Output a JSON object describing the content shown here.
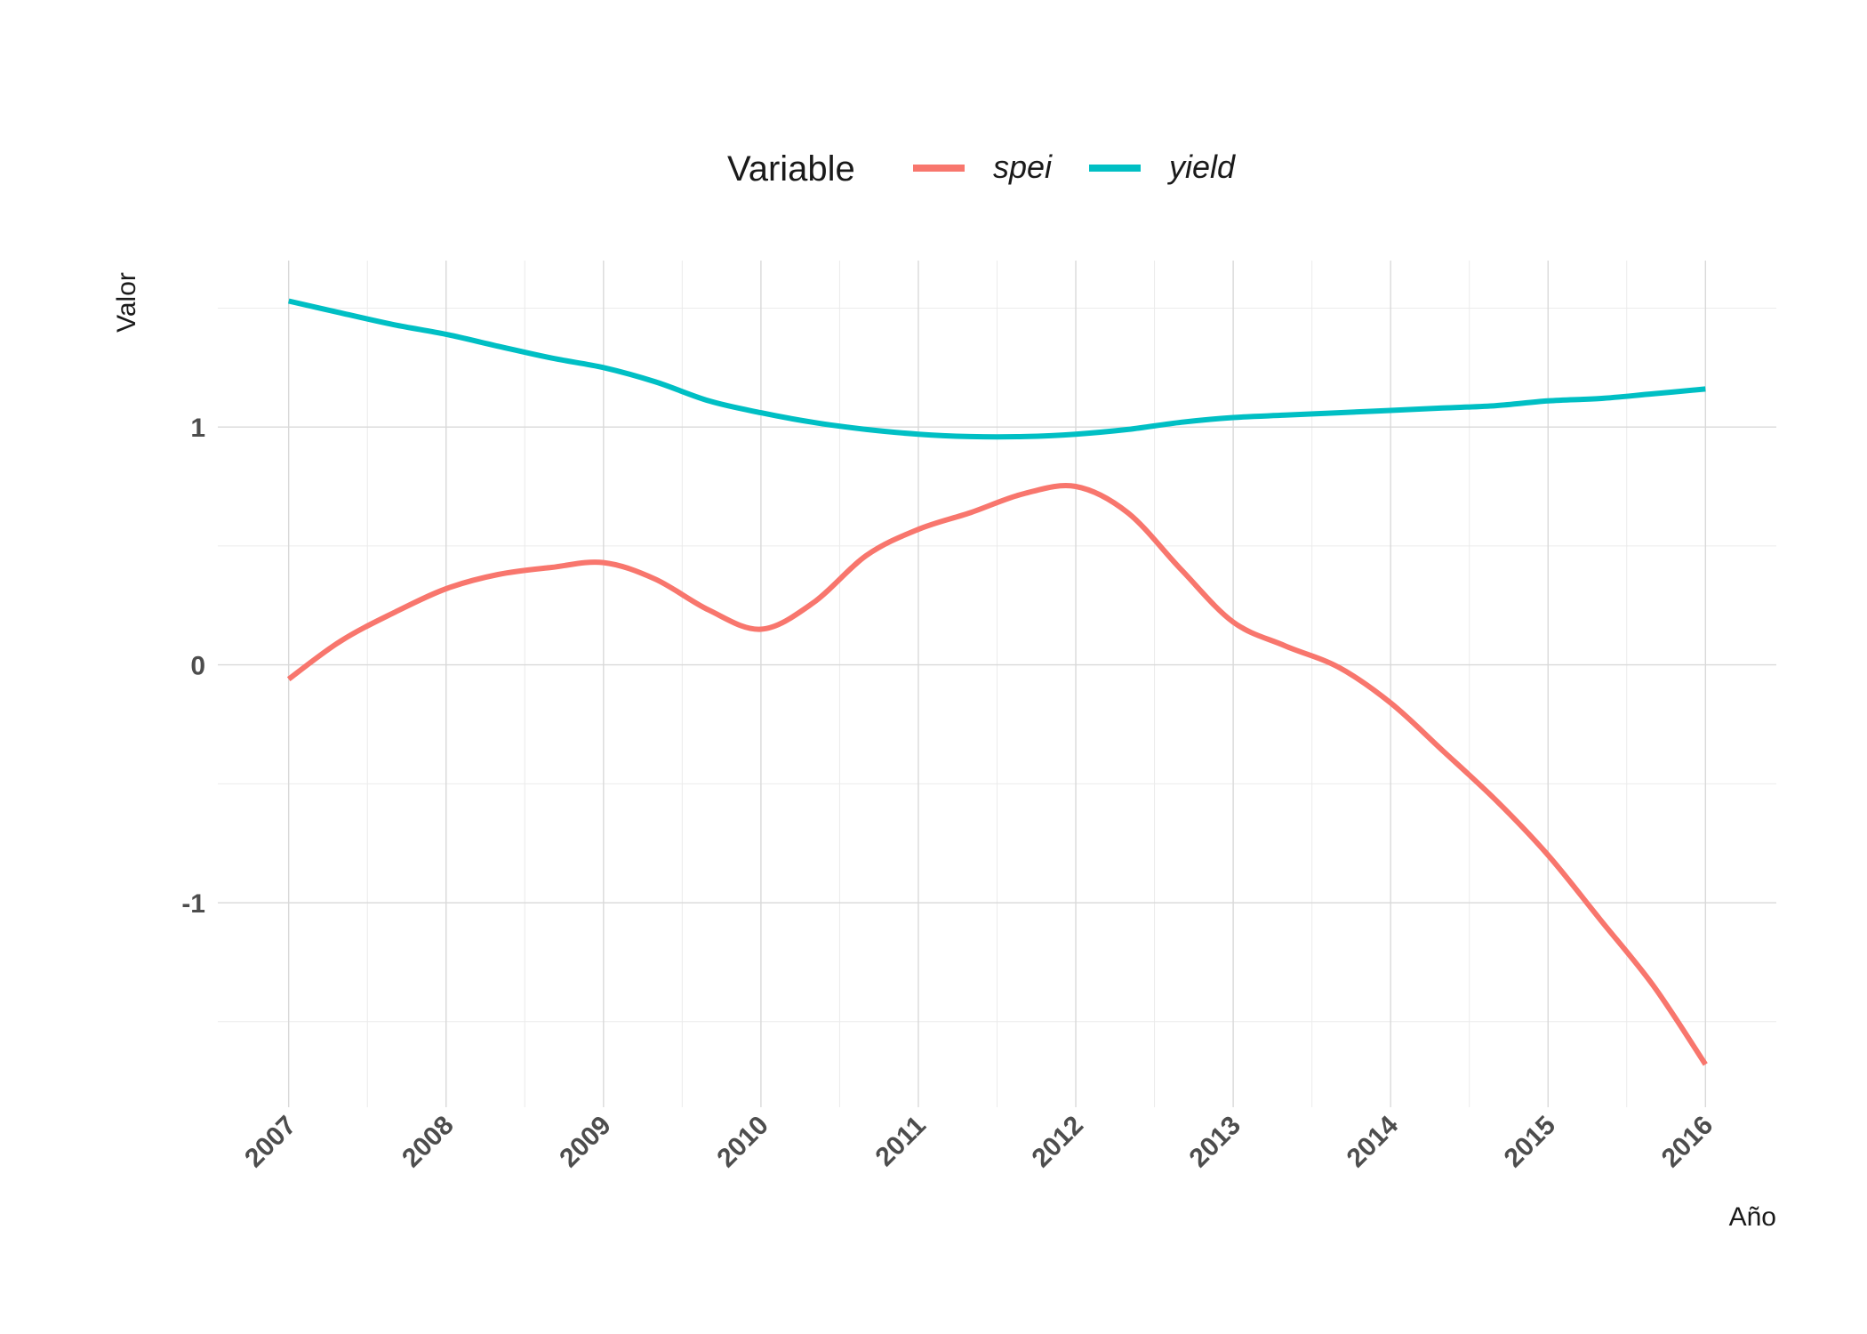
{
  "chart_data": {
    "type": "line",
    "xlabel": "Año",
    "ylabel": "Valor",
    "x_ticks": [
      "2007",
      "2008",
      "2009",
      "2010",
      "2011",
      "2012",
      "2013",
      "2014",
      "2015",
      "2016"
    ],
    "y_ticks": [
      "-1",
      "0",
      "1"
    ],
    "xlim": [
      2006.55,
      2016.45
    ],
    "ylim": [
      -1.86,
      1.7
    ],
    "grid": true,
    "legend": {
      "title": "Variable",
      "position": "top"
    },
    "series": [
      {
        "name": "spei",
        "color": "#F8766D",
        "x": [
          2007,
          2007.33,
          2007.67,
          2008,
          2008.33,
          2008.67,
          2009,
          2009.33,
          2009.67,
          2010,
          2010.33,
          2010.67,
          2011,
          2011.33,
          2011.67,
          2012,
          2012.33,
          2012.67,
          2013,
          2013.33,
          2013.67,
          2014,
          2014.33,
          2014.67,
          2015,
          2015.33,
          2015.67,
          2016
        ],
        "y": [
          -0.06,
          0.1,
          0.22,
          0.32,
          0.38,
          0.41,
          0.43,
          0.36,
          0.23,
          0.15,
          0.26,
          0.46,
          0.57,
          0.64,
          0.72,
          0.75,
          0.64,
          0.4,
          0.18,
          0.08,
          -0.01,
          -0.16,
          -0.36,
          -0.57,
          -0.8,
          -1.07,
          -1.35,
          -1.68
        ]
      },
      {
        "name": "yield",
        "color": "#00BFC4",
        "x": [
          2007,
          2007.33,
          2007.67,
          2008,
          2008.33,
          2008.67,
          2009,
          2009.33,
          2009.67,
          2010,
          2010.33,
          2010.67,
          2011,
          2011.33,
          2011.67,
          2012,
          2012.33,
          2012.67,
          2013,
          2013.33,
          2013.67,
          2014,
          2014.33,
          2014.67,
          2015,
          2015.33,
          2015.67,
          2016
        ],
        "y": [
          1.53,
          1.48,
          1.43,
          1.39,
          1.34,
          1.29,
          1.25,
          1.19,
          1.11,
          1.06,
          1.02,
          0.99,
          0.97,
          0.96,
          0.96,
          0.97,
          0.99,
          1.02,
          1.04,
          1.05,
          1.06,
          1.07,
          1.08,
          1.09,
          1.11,
          1.12,
          1.14,
          1.16
        ]
      }
    ]
  }
}
